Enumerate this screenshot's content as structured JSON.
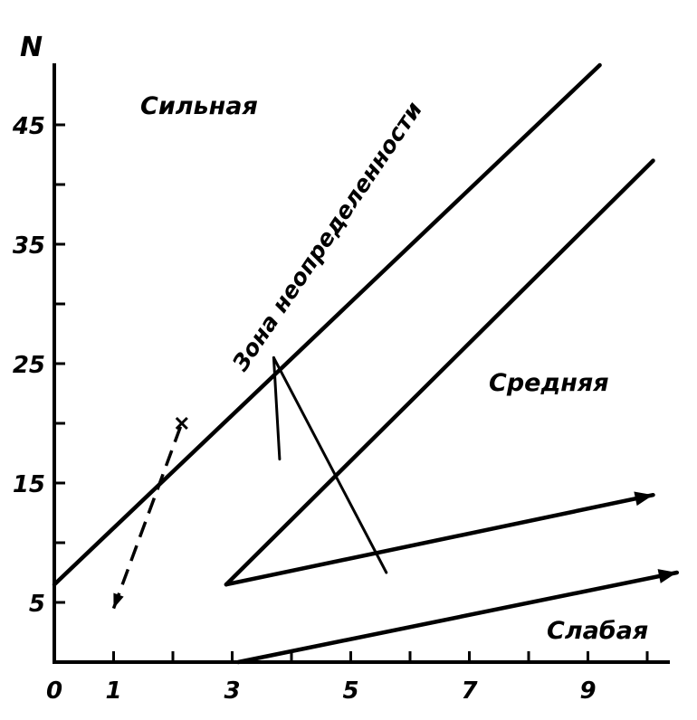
{
  "chart_data": {
    "type": "line",
    "title": "",
    "xlabel": "",
    "ylabel": "N",
    "xlim": [
      0,
      10.5
    ],
    "ylim": [
      0,
      50
    ],
    "x_ticks": [
      "0",
      "1",
      "3",
      "5",
      "7",
      "9"
    ],
    "y_ticks": [
      "5",
      "15",
      "25",
      "35",
      "45"
    ],
    "regions": {
      "strong": "Сильная",
      "medium": "Средняя",
      "weak": "Слабая",
      "uncertainty": "Зона неопределенности"
    },
    "series": [
      {
        "id": "upper-boundary",
        "points": [
          [
            0,
            6.5
          ],
          [
            9.2,
            50
          ]
        ]
      },
      {
        "id": "middle-boundary",
        "points": [
          [
            2.9,
            6.5
          ],
          [
            10.1,
            42
          ]
        ]
      },
      {
        "id": "wedge-arm",
        "points": [
          [
            2.9,
            6.5
          ],
          [
            10.1,
            14
          ]
        ]
      },
      {
        "id": "lower-boundary",
        "points": [
          [
            3.1,
            0
          ],
          [
            10.5,
            7.5
          ]
        ]
      },
      {
        "id": "stub-line",
        "points": [
          [
            3.7,
            25.5
          ],
          [
            3.8,
            17
          ]
        ]
      },
      {
        "id": "diagonal-line",
        "points": [
          [
            3.7,
            25.5
          ],
          [
            5.6,
            7.5
          ]
        ]
      },
      {
        "id": "dashed-line",
        "points": [
          [
            1.0,
            4.5
          ],
          [
            2.15,
            20
          ]
        ]
      }
    ],
    "grid": false,
    "legend": "none"
  }
}
